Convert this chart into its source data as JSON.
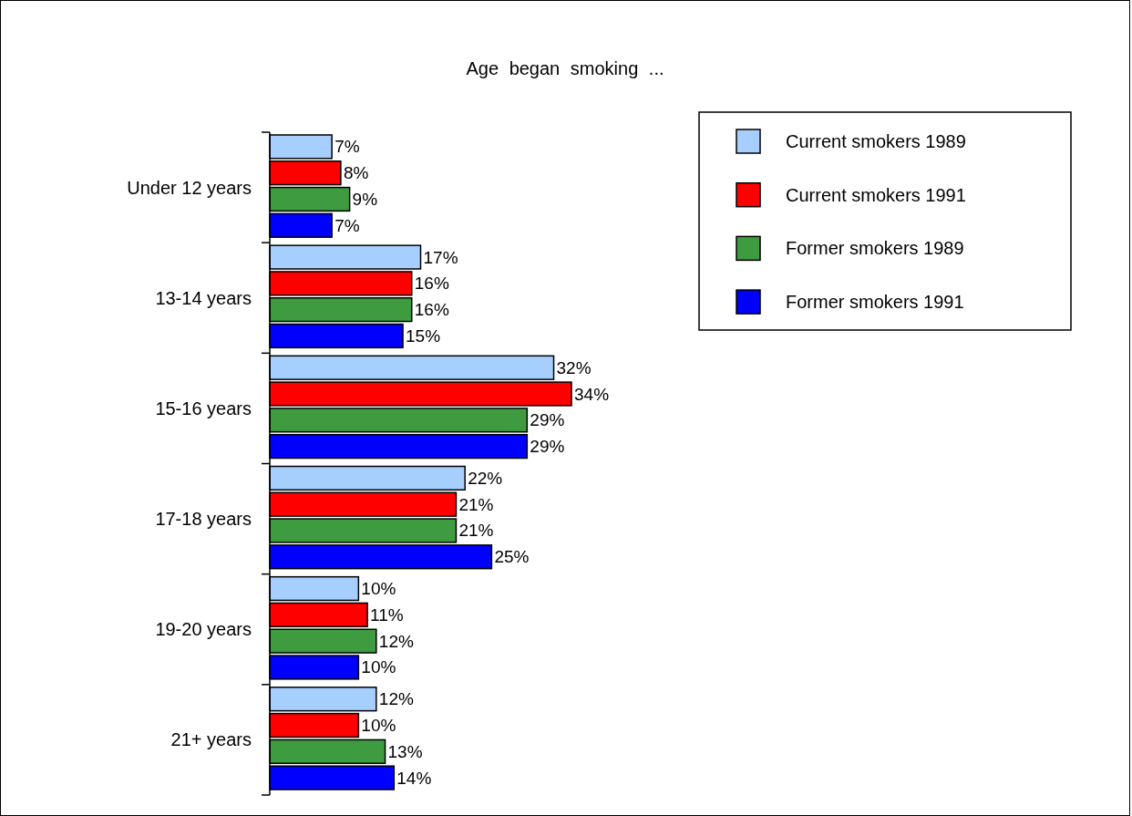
{
  "chart_data": {
    "type": "bar",
    "orientation": "horizontal",
    "title": "Age began smoking ...",
    "categories": [
      "Under 12 years",
      "13-14 years",
      "15-16 years",
      "17-18 years",
      "19-20 years",
      "21+ years"
    ],
    "series": [
      {
        "name": "Current smokers 1989",
        "color": "#a6cfff",
        "values": [
          7,
          17,
          32,
          22,
          10,
          12
        ],
        "value_labels": [
          "7%",
          "17%",
          "32%",
          "22%",
          "10%",
          "12%"
        ]
      },
      {
        "name": "Current smokers 1991",
        "color": "#ff0000",
        "values": [
          8,
          16,
          34,
          21,
          11,
          10
        ],
        "value_labels": [
          "8%",
          "16%",
          "34%",
          "21%",
          "11%",
          "10%"
        ]
      },
      {
        "name": "Former smokers 1989",
        "color": "#3f9b3f",
        "values": [
          9,
          16,
          29,
          21,
          12,
          13
        ],
        "value_labels": [
          "9%",
          "16%",
          "29%",
          "21%",
          "12%",
          "13%"
        ]
      },
      {
        "name": "Former smokers 1991",
        "color": "#0000ff",
        "values": [
          7,
          15,
          29,
          25,
          10,
          14
        ],
        "value_labels": [
          "7%",
          "15%",
          "29%",
          "25%",
          "10%",
          "14%"
        ]
      }
    ],
    "legend": "top right"
  }
}
